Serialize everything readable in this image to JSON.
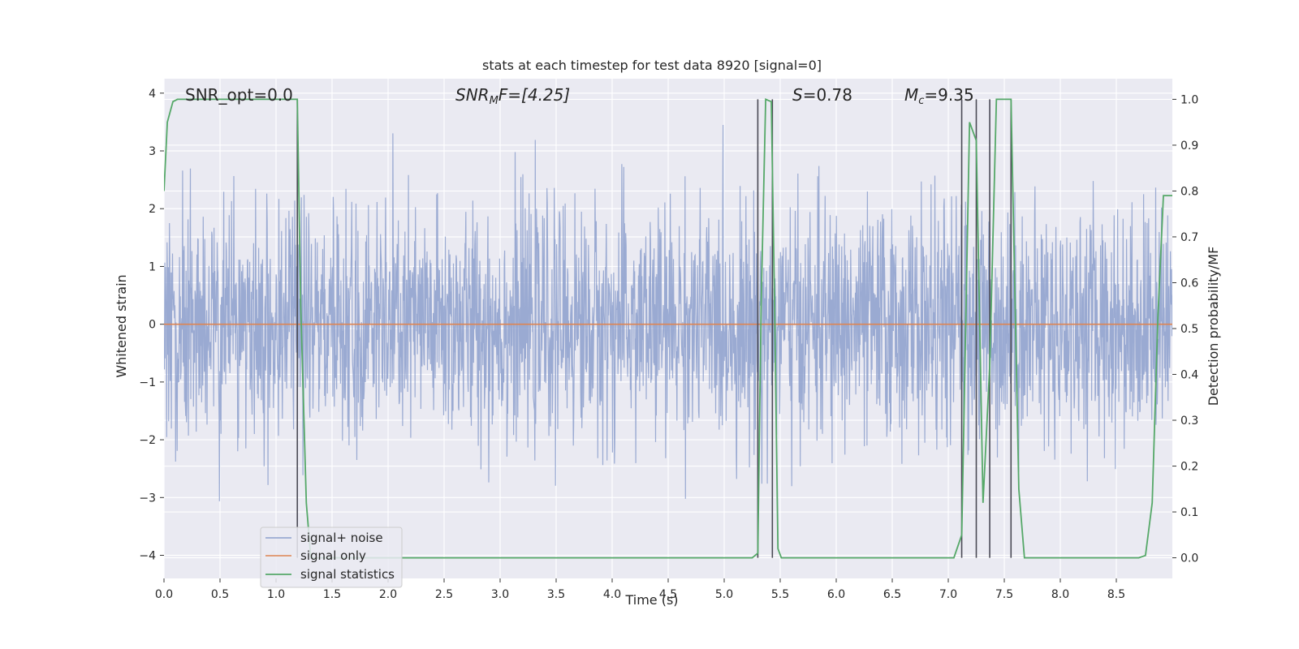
{
  "chart_data": {
    "type": "line",
    "title": "stats at each timestep for test data 8920 [signal=0]",
    "xlabel": "Time (s)",
    "ylabel": "Whitened strain",
    "y2label": "Detection probability/MF",
    "xlim": [
      0,
      9
    ],
    "ylim": [
      -4.4,
      4.25
    ],
    "y2lim": [
      -0.045,
      1.045
    ],
    "xticks": [
      0.0,
      0.5,
      1.0,
      1.5,
      2.0,
      2.5,
      3.0,
      3.5,
      4.0,
      4.5,
      5.0,
      5.5,
      6.0,
      6.5,
      7.0,
      7.5,
      8.0,
      8.5
    ],
    "yticks": [
      -4,
      -3,
      -2,
      -1,
      0,
      1,
      2,
      3,
      4
    ],
    "y2ticks": [
      0.0,
      0.1,
      0.2,
      0.3,
      0.4,
      0.5,
      0.6,
      0.7,
      0.8,
      0.9,
      1.0
    ],
    "grid": true,
    "legend_position": "lower-left",
    "annotations": {
      "snr_opt": "SNR_opt=0.0",
      "snr_mf_sym": "SNR",
      "snr_mf_sub": "M",
      "snr_mf_rest": "F=[4.25]",
      "s_sym": "S",
      "s_rest": "=0.78",
      "mc_sym": "M",
      "mc_sub": "c",
      "mc_rest": "=9.35"
    },
    "series": [
      {
        "name": "signal+ noise",
        "color": "#8c9fcc",
        "kind": "noise",
        "amplitude_range": [
          -3.9,
          3.45
        ],
        "typical_std": 1.0
      },
      {
        "name": "signal only",
        "color": "#dd8452",
        "x": [
          0.0,
          9.0
        ],
        "y": [
          0.0,
          0.0
        ]
      },
      {
        "name": "signal statistics",
        "color": "#55a868",
        "axis": "right",
        "x": [
          0.0,
          0.03,
          0.08,
          0.12,
          0.5,
          1.0,
          1.15,
          1.19,
          1.22,
          1.27,
          1.31,
          1.35,
          2.0,
          3.0,
          4.0,
          5.0,
          5.25,
          5.3,
          5.33,
          5.37,
          5.42,
          5.45,
          5.48,
          5.51,
          5.55,
          6.0,
          6.5,
          7.0,
          7.05,
          7.12,
          7.19,
          7.25,
          7.31,
          7.37,
          7.43,
          7.48,
          7.56,
          7.63,
          7.68,
          7.75,
          8.0,
          8.5,
          8.7,
          8.76,
          8.82,
          8.87,
          8.92,
          9.0
        ],
        "y": [
          0.8,
          0.95,
          0.995,
          1.0,
          1.0,
          1.0,
          1.0,
          1.0,
          0.55,
          0.12,
          0.0,
          0.0,
          0.0,
          0.0,
          0.0,
          0.0,
          0.0,
          0.01,
          0.55,
          1.0,
          0.995,
          0.55,
          0.02,
          0.0,
          0.0,
          0.0,
          0.0,
          0.0,
          0.0,
          0.05,
          0.95,
          0.91,
          0.12,
          0.42,
          1.0,
          1.0,
          1.0,
          0.15,
          0.0,
          0.0,
          0.0,
          0.0,
          0.0,
          0.005,
          0.12,
          0.52,
          0.79,
          0.79
        ]
      }
    ],
    "vlines": {
      "color": "#4a4a55",
      "x": [
        1.19,
        5.3,
        5.43,
        7.12,
        7.25,
        7.37,
        7.56
      ]
    }
  }
}
